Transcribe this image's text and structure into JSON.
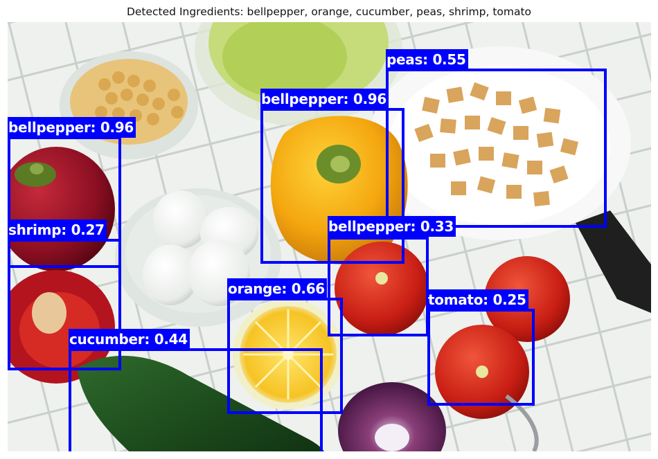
{
  "title": "Detected Ingredients: bellpepper, orange, cucumber, peas, shrimp, tomato",
  "box_color": "#0000ff",
  "detections": [
    {
      "label": "peas: 0.55"
    },
    {
      "label": "bellpepper: 0.96"
    },
    {
      "label": "bellpepper: 0.96"
    },
    {
      "label": "shrimp: 0.27"
    },
    {
      "label": "bellpepper: 0.33"
    },
    {
      "label": "tomato: 0.25"
    },
    {
      "label": "orange: 0.66"
    },
    {
      "label": "cucumber: 0.44"
    }
  ]
}
